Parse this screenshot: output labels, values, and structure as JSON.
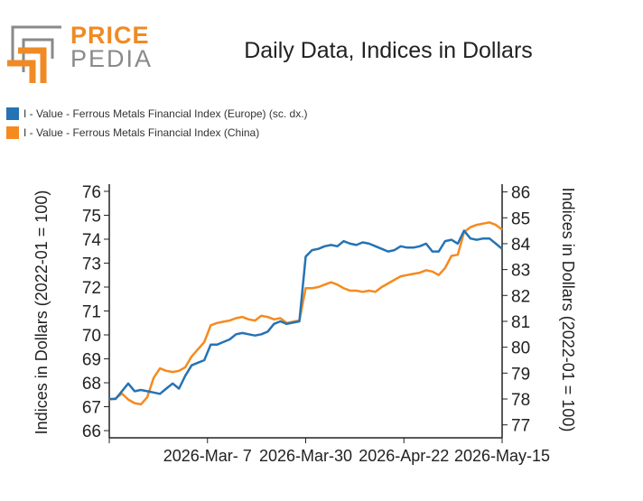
{
  "brand": {
    "line1": "PRICE",
    "line2": "PEDIA"
  },
  "colors": {
    "europe": "#2573b4",
    "china": "#f58a1f",
    "logo_orange": "#f08a24",
    "logo_gray": "#8a8a8a"
  },
  "chart_data": {
    "type": "line",
    "title": "Daily Data, Indices in Dollars",
    "ylabel_left": "Indices in Dollars (2022-01 = 100)",
    "ylabel_right": "Indices in Dollars (2022-01 = 100)",
    "x_tick_labels": [
      "2026-Mar- 7",
      "2026-Mar-30",
      "2026-Apr-22",
      "2026-May-15"
    ],
    "y_left": {
      "min": 65.7,
      "max": 76.3,
      "ticks": [
        66,
        67,
        68,
        69,
        70,
        71,
        72,
        73,
        74,
        75,
        76
      ]
    },
    "y_right": {
      "min": 76.5,
      "max": 86.3,
      "ticks": [
        77,
        78,
        79,
        80,
        81,
        82,
        83,
        84,
        85,
        86
      ]
    },
    "grid": false,
    "legend_position": "top-left",
    "series": [
      {
        "name": "I - Value - Ferrous Metals Financial Index (Europe) (sc. dx.)",
        "axis": "right",
        "values": [
          78.0,
          78.0,
          78.3,
          78.6,
          78.3,
          78.35,
          78.3,
          78.25,
          78.2,
          78.4,
          78.6,
          78.4,
          78.9,
          79.3,
          79.4,
          79.5,
          80.1,
          80.1,
          80.2,
          80.3,
          80.5,
          80.55,
          80.5,
          80.45,
          80.5,
          80.6,
          80.9,
          81.0,
          80.9,
          80.95,
          81.0,
          83.5,
          83.75,
          83.8,
          83.9,
          83.95,
          83.9,
          84.1,
          84.0,
          83.95,
          84.05,
          84.0,
          83.9,
          83.8,
          83.7,
          83.75,
          83.9,
          83.85,
          83.85,
          83.9,
          84.0,
          83.7,
          83.7,
          84.1,
          84.15,
          84.0,
          84.5,
          84.2,
          84.15,
          84.2,
          84.2,
          84.0,
          83.8
        ]
      },
      {
        "name": "I - Value - Ferrous Metals Financial Index (China)",
        "axis": "left",
        "values": [
          67.3,
          67.35,
          67.55,
          67.3,
          67.15,
          67.1,
          67.4,
          68.2,
          68.6,
          68.5,
          68.45,
          68.5,
          68.65,
          69.1,
          69.4,
          69.7,
          70.4,
          70.5,
          70.55,
          70.6,
          70.7,
          70.75,
          70.65,
          70.6,
          70.8,
          70.75,
          70.65,
          70.7,
          70.5,
          70.55,
          70.6,
          71.95,
          71.95,
          72.0,
          72.1,
          72.2,
          72.1,
          71.95,
          71.85,
          71.85,
          71.8,
          71.85,
          71.8,
          72.0,
          72.15,
          72.3,
          72.45,
          72.5,
          72.55,
          72.6,
          72.7,
          72.65,
          72.5,
          72.8,
          73.3,
          73.35,
          74.3,
          74.5,
          74.6,
          74.65,
          74.7,
          74.6,
          74.4
        ]
      }
    ]
  }
}
